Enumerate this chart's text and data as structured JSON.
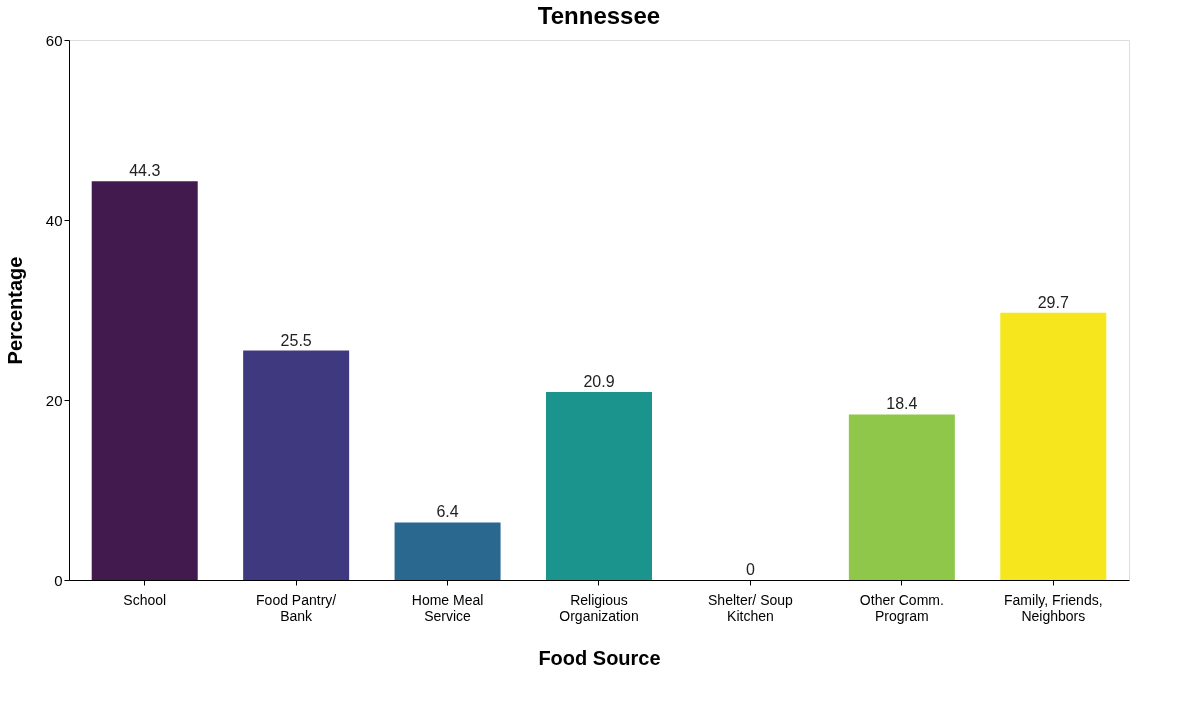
{
  "chart_data": {
    "type": "bar",
    "title": "Tennessee",
    "xlabel": "Food Source",
    "ylabel": "Percentage",
    "categories": [
      "School",
      "Food Pantry/ Bank",
      "Home Meal Service",
      "Religious Organization",
      "Shelter/ Soup Kitchen",
      "Other Comm. Program",
      "Family, Friends, Neighbors"
    ],
    "values": [
      44.3,
      25.5,
      6.4,
      20.9,
      0,
      18.4,
      29.7
    ],
    "colors": [
      "#431a4d",
      "#3f3a80",
      "#2a6890",
      "#1a948d",
      "#3fbc73",
      "#8fc74a",
      "#f5e61e"
    ],
    "ylim": [
      0,
      60
    ],
    "yticks": [
      0,
      20,
      40,
      60
    ],
    "grid": false,
    "data_labels": true,
    "legend": false
  }
}
